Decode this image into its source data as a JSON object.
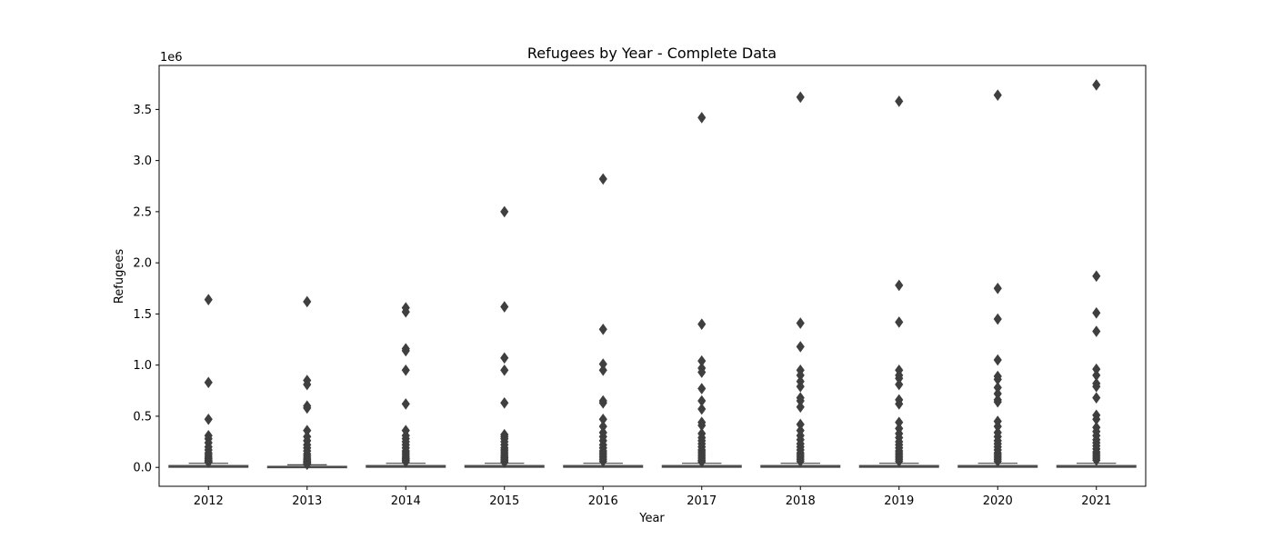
{
  "chart_data": {
    "type": "box",
    "title": "Refugees by Year - Complete Data",
    "xlabel": "Year",
    "ylabel": "Refugees",
    "y_offset_text": "1e6",
    "ylim": [
      -185000,
      3930000
    ],
    "grid": false,
    "categories": [
      "2012",
      "2013",
      "2014",
      "2015",
      "2016",
      "2017",
      "2018",
      "2019",
      "2020",
      "2021"
    ],
    "y_ticks": [
      0,
      500000,
      1000000,
      1500000,
      2000000,
      2500000,
      3000000,
      3500000
    ],
    "y_tick_labels": [
      "0.0",
      "0.5",
      "1.0",
      "1.5",
      "2.0",
      "2.5",
      "3.0",
      "3.5"
    ],
    "box_color": "#4a4a4a",
    "boxes": [
      {
        "year": "2012",
        "q1": 1000,
        "median": 5000,
        "q3": 18000,
        "whisker_low": 0,
        "whisker_high": 40000,
        "outliers": [
          1640000,
          830000,
          470000,
          310000,
          280000,
          240000,
          200000,
          170000,
          140000,
          120000,
          100000,
          85000,
          70000,
          60000,
          50000
        ]
      },
      {
        "year": "2013",
        "q1": 1000,
        "median": 4000,
        "q3": 10000,
        "whisker_low": 0,
        "whisker_high": 25000,
        "outliers": [
          1620000,
          850000,
          810000,
          600000,
          580000,
          360000,
          300000,
          260000,
          220000,
          190000,
          160000,
          130000,
          110000,
          90000,
          75000,
          60000,
          50000,
          40000,
          30000
        ]
      },
      {
        "year": "2014",
        "q1": 1000,
        "median": 5000,
        "q3": 18000,
        "whisker_low": 0,
        "whisker_high": 40000,
        "outliers": [
          1560000,
          1520000,
          1160000,
          1140000,
          950000,
          620000,
          360000,
          310000,
          280000,
          250000,
          220000,
          190000,
          160000,
          140000,
          120000,
          100000,
          85000,
          70000,
          55000
        ]
      },
      {
        "year": "2015",
        "q1": 1000,
        "median": 5000,
        "q3": 18000,
        "whisker_low": 0,
        "whisker_high": 40000,
        "outliers": [
          2500000,
          1570000,
          1070000,
          950000,
          630000,
          320000,
          300000,
          280000,
          250000,
          220000,
          190000,
          170000,
          150000,
          130000,
          110000,
          95000,
          80000,
          65000,
          50000
        ]
      },
      {
        "year": "2016",
        "q1": 1000,
        "median": 5000,
        "q3": 18000,
        "whisker_low": 0,
        "whisker_high": 40000,
        "outliers": [
          2820000,
          1350000,
          1010000,
          950000,
          650000,
          630000,
          470000,
          400000,
          340000,
          300000,
          260000,
          220000,
          190000,
          160000,
          140000,
          120000,
          100000,
          80000,
          60000
        ]
      },
      {
        "year": "2017",
        "q1": 1000,
        "median": 5000,
        "q3": 18000,
        "whisker_low": 0,
        "whisker_high": 40000,
        "outliers": [
          3420000,
          1400000,
          1040000,
          970000,
          930000,
          770000,
          650000,
          570000,
          440000,
          410000,
          330000,
          290000,
          260000,
          230000,
          200000,
          170000,
          150000,
          130000,
          110000,
          90000,
          70000,
          55000
        ]
      },
      {
        "year": "2018",
        "q1": 1000,
        "median": 5000,
        "q3": 18000,
        "whisker_low": 0,
        "whisker_high": 40000,
        "outliers": [
          3620000,
          1410000,
          1180000,
          950000,
          900000,
          840000,
          790000,
          680000,
          650000,
          590000,
          420000,
          360000,
          310000,
          270000,
          230000,
          200000,
          170000,
          140000,
          120000,
          100000,
          80000,
          60000
        ]
      },
      {
        "year": "2019",
        "q1": 1000,
        "median": 5000,
        "q3": 18000,
        "whisker_low": 0,
        "whisker_high": 40000,
        "outliers": [
          3580000,
          1780000,
          1420000,
          950000,
          900000,
          870000,
          810000,
          660000,
          620000,
          440000,
          380000,
          330000,
          290000,
          250000,
          220000,
          190000,
          160000,
          140000,
          120000,
          100000,
          80000,
          60000
        ]
      },
      {
        "year": "2020",
        "q1": 1000,
        "median": 5000,
        "q3": 18000,
        "whisker_low": 0,
        "whisker_high": 40000,
        "outliers": [
          3640000,
          1750000,
          1450000,
          1050000,
          890000,
          860000,
          780000,
          720000,
          660000,
          640000,
          450000,
          400000,
          340000,
          300000,
          260000,
          230000,
          200000,
          170000,
          140000,
          120000,
          100000,
          80000,
          60000
        ]
      },
      {
        "year": "2021",
        "q1": 1000,
        "median": 5000,
        "q3": 18000,
        "whisker_low": 0,
        "whisker_high": 40000,
        "outliers": [
          3740000,
          1870000,
          1510000,
          1330000,
          960000,
          900000,
          820000,
          790000,
          680000,
          510000,
          470000,
          390000,
          350000,
          310000,
          270000,
          240000,
          210000,
          180000,
          150000,
          130000,
          110000,
          90000,
          70000
        ]
      }
    ]
  }
}
